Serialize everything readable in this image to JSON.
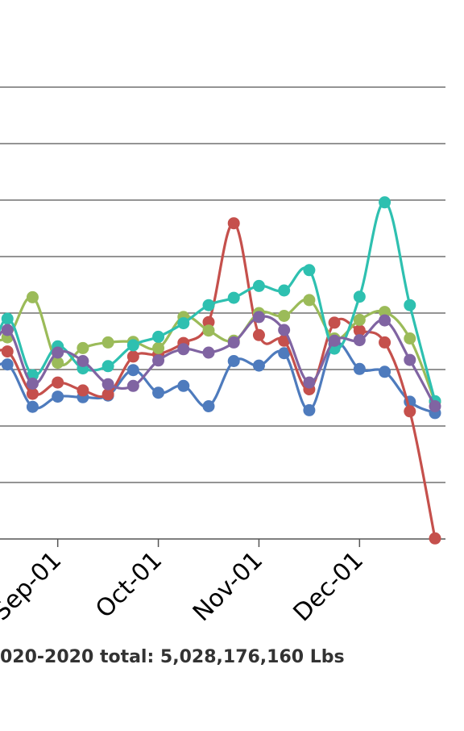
{
  "chart_data": {
    "type": "line",
    "title": "",
    "xlabel": "",
    "ylabel": "",
    "x_ticks": [
      {
        "label": "Sep-01",
        "week": 3
      },
      {
        "label": "Oct-01",
        "week": 7
      },
      {
        "label": "Nov-01",
        "week": 11
      },
      {
        "label": "Dec-01",
        "week": 15
      }
    ],
    "x_range": [
      0,
      18
    ],
    "y_range": [
      0,
      8
    ],
    "grid": true,
    "series": [
      {
        "color": "#4e7bbd",
        "values": [
          2.98,
          2.8,
          2.78,
          2.85,
          3.09,
          2.34,
          2.52,
          2.51,
          2.54,
          2.99,
          2.59,
          2.71,
          2.35,
          3.15,
          3.07,
          3.29,
          2.28,
          3.45,
          3.01,
          2.96,
          2.43,
          2.23
        ]
      },
      {
        "color": "#c5504c",
        "values": [
          3.05,
          2.93,
          3.14,
          3.32,
          2.57,
          2.77,
          2.63,
          2.56,
          3.23,
          3.27,
          3.47,
          3.84,
          5.59,
          3.61,
          3.51,
          2.65,
          3.83,
          3.69,
          3.48,
          2.26,
          0.01
        ]
      },
      {
        "color": "#9bbb59",
        "values": [
          3.84,
          3.62,
          3.57,
          4.28,
          3.12,
          3.38,
          3.48,
          3.49,
          3.38,
          3.93,
          3.69,
          3.51,
          4.0,
          3.95,
          4.23,
          3.55,
          3.88,
          4.02,
          3.55,
          2.43
        ]
      },
      {
        "color": "#2ec0b0",
        "values": [
          2.84,
          2.86,
          3.9,
          2.9,
          3.41,
          3.02,
          3.06,
          3.43,
          3.58,
          3.82,
          4.14,
          4.27,
          4.48,
          4.4,
          4.76,
          3.37,
          4.29,
          5.96,
          4.14,
          2.44
        ]
      },
      {
        "color": "#8064a2",
        "values": [
          3.17,
          3.12,
          3.7,
          2.75,
          3.3,
          3.15,
          2.74,
          2.71,
          3.16,
          3.36,
          3.3,
          3.48,
          3.93,
          3.7,
          2.77,
          3.51,
          3.52,
          3.87,
          3.17,
          2.35
        ]
      }
    ]
  },
  "footer": {
    "text": "020-2020 total: 5,028,176,160 Lbs"
  }
}
